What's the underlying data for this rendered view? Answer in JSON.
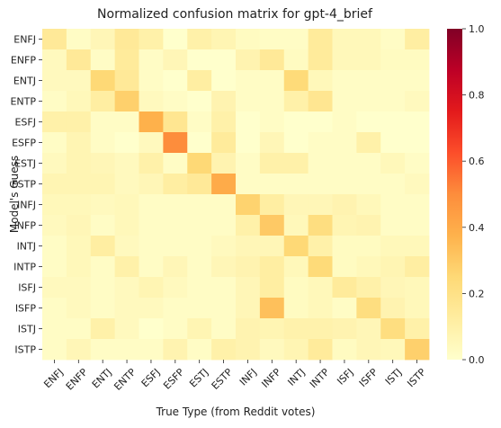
{
  "chart_data": {
    "type": "heatmap",
    "title": "Normalized confusion matrix for gpt-4_brief",
    "xlabel": "True Type (from Reddit votes)",
    "ylabel": "Model's Guess",
    "x_categories": [
      "ENFJ",
      "ENFP",
      "ENTJ",
      "ENTP",
      "ESFJ",
      "ESFP",
      "ESTJ",
      "ESTP",
      "INFJ",
      "INFP",
      "INTJ",
      "INTP",
      "ISFJ",
      "ISFP",
      "ISTJ",
      "ISTP"
    ],
    "y_categories": [
      "ENFJ",
      "ENFP",
      "ENTJ",
      "ENTP",
      "ESFJ",
      "ESFP",
      "ESTJ",
      "ESTP",
      "INFJ",
      "INFP",
      "INTJ",
      "INTP",
      "ISFJ",
      "ISFP",
      "ISTJ",
      "ISTP"
    ],
    "values": [
      [
        0.15,
        0.02,
        0.06,
        0.15,
        0.1,
        0.0,
        0.1,
        0.07,
        0.03,
        0.02,
        0.02,
        0.14,
        0.05,
        0.05,
        0.02,
        0.12
      ],
      [
        0.04,
        0.15,
        0.02,
        0.14,
        0.02,
        0.06,
        0.0,
        0.0,
        0.08,
        0.15,
        0.03,
        0.14,
        0.05,
        0.05,
        0.03,
        0.03
      ],
      [
        0.04,
        0.04,
        0.25,
        0.15,
        0.02,
        0.0,
        0.12,
        0.0,
        0.02,
        0.02,
        0.24,
        0.05,
        0.02,
        0.02,
        0.02,
        0.02
      ],
      [
        0.02,
        0.05,
        0.12,
        0.28,
        0.04,
        0.02,
        0.0,
        0.08,
        0.02,
        0.02,
        0.1,
        0.17,
        0.02,
        0.02,
        0.02,
        0.04
      ],
      [
        0.1,
        0.1,
        0.02,
        0.02,
        0.38,
        0.17,
        0.02,
        0.1,
        0.0,
        0.02,
        0.0,
        0.0,
        0.02,
        0.0,
        0.0,
        0.0
      ],
      [
        0.02,
        0.07,
        0.02,
        0.0,
        0.04,
        0.5,
        0.0,
        0.14,
        0.0,
        0.06,
        0.0,
        0.02,
        0.02,
        0.1,
        0.0,
        0.0
      ],
      [
        0.04,
        0.07,
        0.06,
        0.04,
        0.1,
        0.02,
        0.25,
        0.08,
        0.02,
        0.1,
        0.1,
        0.02,
        0.02,
        0.02,
        0.05,
        0.02
      ],
      [
        0.07,
        0.07,
        0.07,
        0.04,
        0.06,
        0.12,
        0.15,
        0.4,
        0.02,
        0.02,
        0.02,
        0.02,
        0.02,
        0.02,
        0.02,
        0.04
      ],
      [
        0.05,
        0.05,
        0.04,
        0.05,
        0.02,
        0.02,
        0.02,
        0.02,
        0.27,
        0.12,
        0.06,
        0.06,
        0.08,
        0.05,
        0.02,
        0.02
      ],
      [
        0.04,
        0.06,
        0.02,
        0.05,
        0.02,
        0.02,
        0.02,
        0.02,
        0.1,
        0.3,
        0.05,
        0.22,
        0.07,
        0.08,
        0.02,
        0.02
      ],
      [
        0.02,
        0.05,
        0.12,
        0.04,
        0.02,
        0.02,
        0.02,
        0.04,
        0.06,
        0.06,
        0.25,
        0.1,
        0.03,
        0.03,
        0.05,
        0.05
      ],
      [
        0.02,
        0.05,
        0.02,
        0.1,
        0.02,
        0.06,
        0.02,
        0.06,
        0.08,
        0.12,
        0.05,
        0.24,
        0.03,
        0.05,
        0.07,
        0.12
      ],
      [
        0.04,
        0.04,
        0.02,
        0.04,
        0.07,
        0.04,
        0.02,
        0.02,
        0.06,
        0.12,
        0.03,
        0.05,
        0.14,
        0.1,
        0.06,
        0.05
      ],
      [
        0.02,
        0.04,
        0.02,
        0.04,
        0.04,
        0.02,
        0.02,
        0.02,
        0.06,
        0.33,
        0.03,
        0.05,
        0.02,
        0.22,
        0.08,
        0.05
      ],
      [
        0.02,
        0.02,
        0.1,
        0.04,
        0.0,
        0.02,
        0.07,
        0.02,
        0.08,
        0.07,
        0.09,
        0.09,
        0.08,
        0.06,
        0.22,
        0.1
      ],
      [
        0.02,
        0.06,
        0.02,
        0.02,
        0.02,
        0.08,
        0.02,
        0.1,
        0.08,
        0.04,
        0.07,
        0.14,
        0.03,
        0.06,
        0.05,
        0.28
      ]
    ],
    "vmin": 0.0,
    "vmax": 1.0,
    "colormap": "YlOrRd",
    "colorbar_ticks": [
      0.0,
      0.2,
      0.4,
      0.6,
      0.8,
      1.0
    ],
    "colorbar_tick_labels": [
      "0.0",
      "0.2",
      "0.4",
      "0.6",
      "0.8",
      "1.0"
    ],
    "grid": false,
    "legend": "colorbar-right"
  }
}
